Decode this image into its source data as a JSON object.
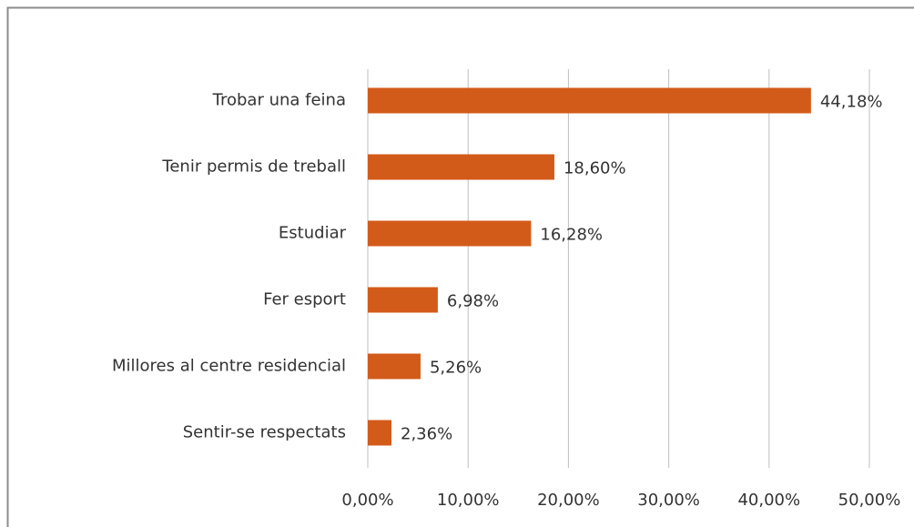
{
  "chart_data": {
    "type": "bar",
    "orientation": "horizontal",
    "categories": [
      "Trobar una feina",
      "Tenir permis de treball",
      "Estudiar",
      "Fer esport",
      "Millores al centre residencial",
      "Sentir-se respectats"
    ],
    "values": [
      44.18,
      18.6,
      16.28,
      6.98,
      5.26,
      2.36
    ],
    "value_labels": [
      "44,18%",
      "18,60%",
      "16,28%",
      "6,98%",
      "5,26%",
      "2,36%"
    ],
    "color": "#d35b1a",
    "xlim": [
      0,
      50
    ],
    "xticks": [
      {
        "value": 0,
        "label": "0,00%"
      },
      {
        "value": 10,
        "label": "10,00%"
      },
      {
        "value": 20,
        "label": "20,00%"
      },
      {
        "value": 30,
        "label": "30,00%"
      },
      {
        "value": 40,
        "label": "40,00%"
      },
      {
        "value": 50,
        "label": "50,00%"
      }
    ],
    "grid": true
  }
}
